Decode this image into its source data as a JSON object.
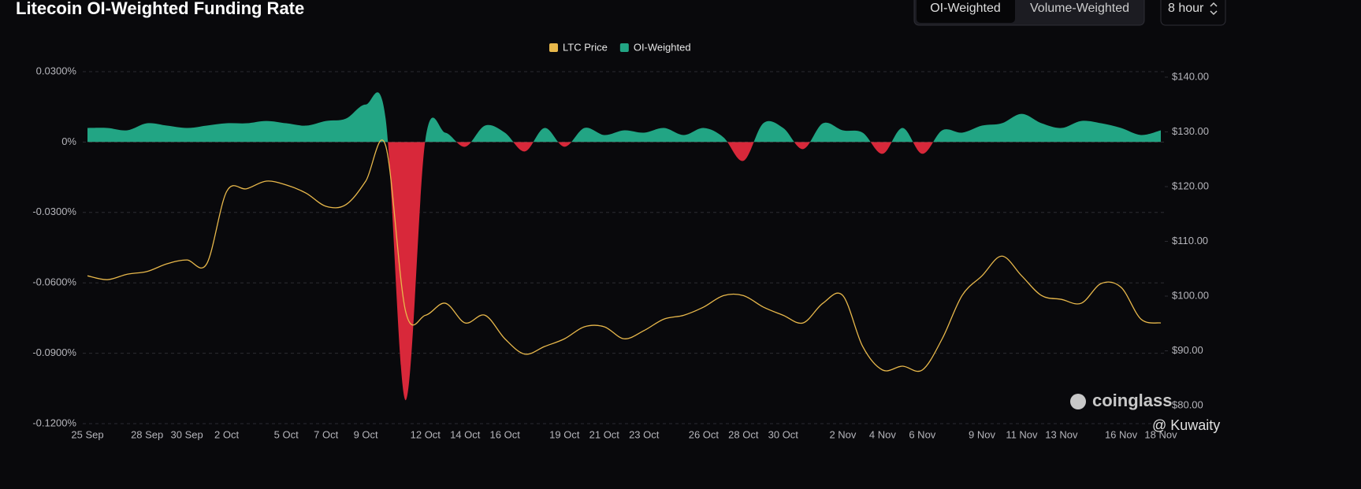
{
  "header": {
    "title": "Litecoin OI-Weighted Funding Rate",
    "tabs": [
      "OI-Weighted",
      "Volume-Weighted"
    ],
    "interval": "8 hour"
  },
  "watermark": {
    "brand": "coinglass",
    "credit": "@ Kuwaity"
  },
  "chart_data": {
    "type": "area",
    "categories": [
      "25 Sep",
      null,
      null,
      "28 Sep",
      null,
      "30 Sep",
      null,
      "2 Oct",
      null,
      null,
      "5 Oct",
      null,
      "7 Oct",
      null,
      "9 Oct",
      null,
      null,
      "12 Oct",
      null,
      "14 Oct",
      null,
      "16 Oct",
      null,
      null,
      "19 Oct",
      null,
      "21 Oct",
      null,
      "23 Oct",
      null,
      null,
      "26 Oct",
      null,
      "28 Oct",
      null,
      "30 Oct",
      null,
      null,
      "2 Nov",
      null,
      "4 Nov",
      null,
      "6 Nov",
      null,
      null,
      "9 Nov",
      null,
      "11 Nov",
      null,
      "13 Nov",
      null,
      null,
      "16 Nov",
      null,
      "18 Nov"
    ],
    "series": [
      {
        "name": "LTC Price",
        "type": "line",
        "axis": "y2",
        "color": "#e8b84b",
        "values": [
          103.7,
          103,
          104,
          104.5,
          105.9,
          106.6,
          105.9,
          119.1,
          119.6,
          121,
          120.3,
          118.8,
          116.4,
          116.7,
          121,
          127.5,
          97.3,
          96.5,
          98.7,
          95.1,
          96.5,
          92.2,
          89.4,
          90.8,
          92.2,
          94.4,
          94.4,
          92.2,
          93.7,
          95.8,
          96.5,
          98,
          100.1,
          100.1,
          98,
          96.5,
          95.1,
          98.7,
          100.1,
          90.8,
          86.5,
          87.2,
          86.5,
          92.2,
          100.1,
          103.7,
          107.3,
          103.7,
          100.1,
          99.4,
          98.7,
          102.3,
          101.6,
          95.8,
          95.1
        ]
      },
      {
        "name": "OI-Weighted",
        "type": "area",
        "axis": "y",
        "color": "#22a584",
        "negative_color": "#d8283a",
        "values": [
          0.006,
          0.006,
          0.005,
          0.008,
          0.007,
          0.006,
          0.007,
          0.008,
          0.008,
          0.009,
          0.008,
          0.007,
          0.009,
          0.01,
          0.016,
          0.01,
          -0.11,
          0.001,
          0.004,
          -0.002,
          0.007,
          0.004,
          -0.004,
          0.006,
          -0.002,
          0.006,
          0.003,
          0.005,
          0.004,
          0.006,
          0.003,
          0.006,
          0.002,
          -0.008,
          0.008,
          0.006,
          -0.003,
          0.008,
          0.005,
          0.004,
          -0.005,
          0.006,
          -0.005,
          0.005,
          0.004,
          0.007,
          0.008,
          0.012,
          0.008,
          0.006,
          0.009,
          0.008,
          0.006,
          0.003,
          0.005
        ]
      }
    ],
    "ylim": [
      -0.12,
      0.03
    ],
    "yticks": [
      {
        "value": 0.03,
        "label": "0.0300%"
      },
      {
        "value": 0,
        "label": "0%"
      },
      {
        "value": -0.03,
        "label": "-0.0300%"
      },
      {
        "value": -0.06,
        "label": "-0.0600%"
      },
      {
        "value": -0.09,
        "label": "-0.0900%"
      },
      {
        "value": -0.12,
        "label": "-0.1200%"
      }
    ],
    "y2lim": [
      76.7,
      141
    ],
    "y2ticks": [
      {
        "value": 140,
        "label": "$140.00"
      },
      {
        "value": 130,
        "label": "$130.00"
      },
      {
        "value": 120,
        "label": "$120.00"
      },
      {
        "value": 110,
        "label": "$110.00"
      },
      {
        "value": 100,
        "label": "$100.00"
      },
      {
        "value": 90,
        "label": "$90.00"
      },
      {
        "value": 80,
        "label": "$80.00"
      }
    ],
    "grid": true,
    "legend": "top"
  }
}
